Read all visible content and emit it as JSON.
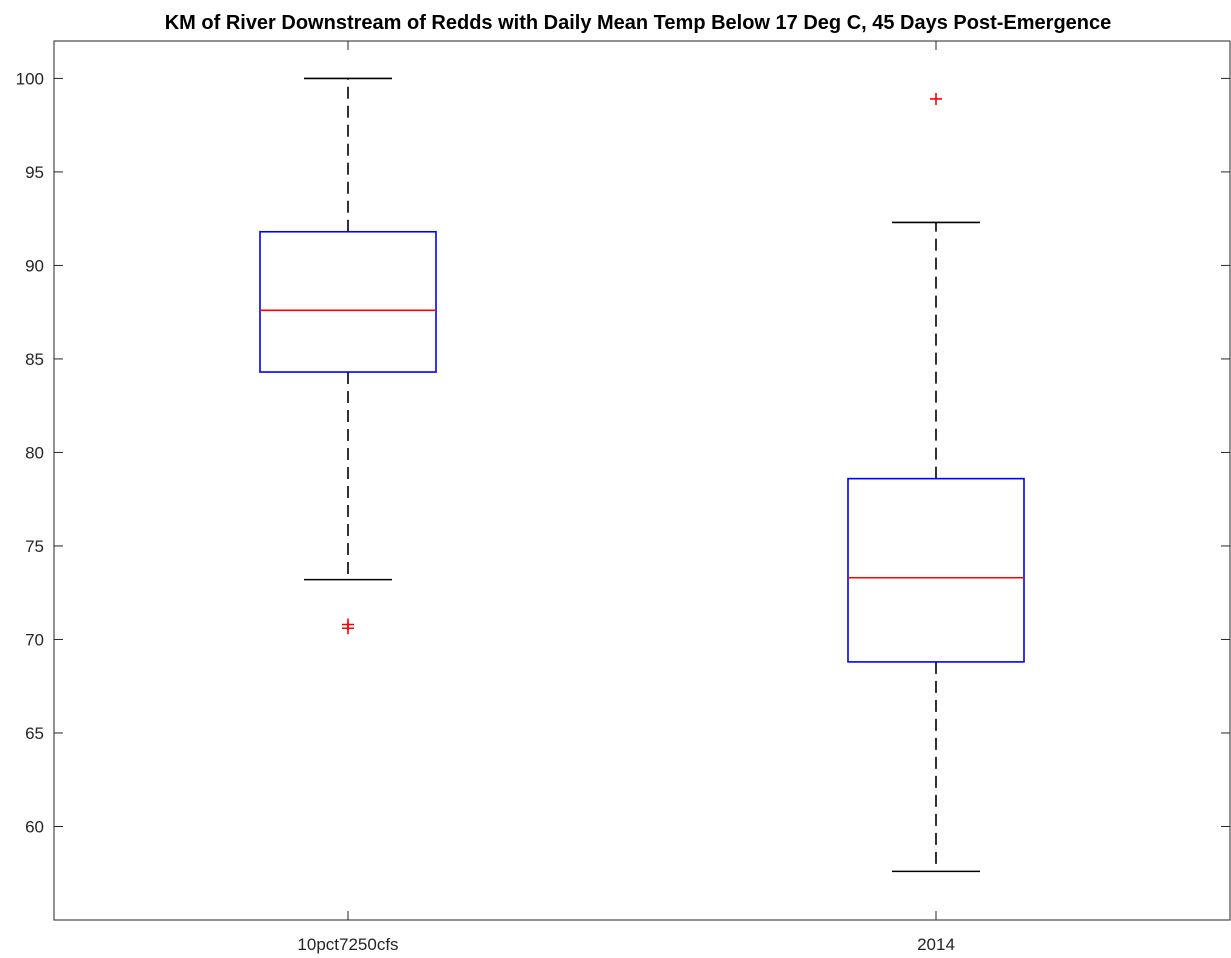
{
  "chart_data": {
    "type": "box",
    "title": "KM of River Downstream of Redds with Daily Mean Temp Below 17 Deg C, 45 Days Post-Emergence",
    "xlabel": "",
    "ylabel": "",
    "ylim": [
      55,
      102
    ],
    "yticks": [
      60,
      65,
      70,
      75,
      80,
      85,
      90,
      95,
      100
    ],
    "grid": false,
    "categories": [
      "10pct7250cfs",
      "2014"
    ],
    "boxes": [
      {
        "category": "10pct7250cfs",
        "whisker_low": 73.2,
        "q1": 84.3,
        "median": 87.6,
        "q3": 91.8,
        "whisker_high": 100.0,
        "outliers": [
          70.6,
          70.8
        ]
      },
      {
        "category": "2014",
        "whisker_low": 57.6,
        "q1": 68.8,
        "median": 73.3,
        "q3": 78.6,
        "whisker_high": 92.3,
        "outliers": [
          98.9
        ]
      }
    ],
    "colors": {
      "box": "#0000ff",
      "median": "#ff0000",
      "whisker": "#000000",
      "outlier": "#ff0000",
      "axes": "#262626"
    }
  }
}
